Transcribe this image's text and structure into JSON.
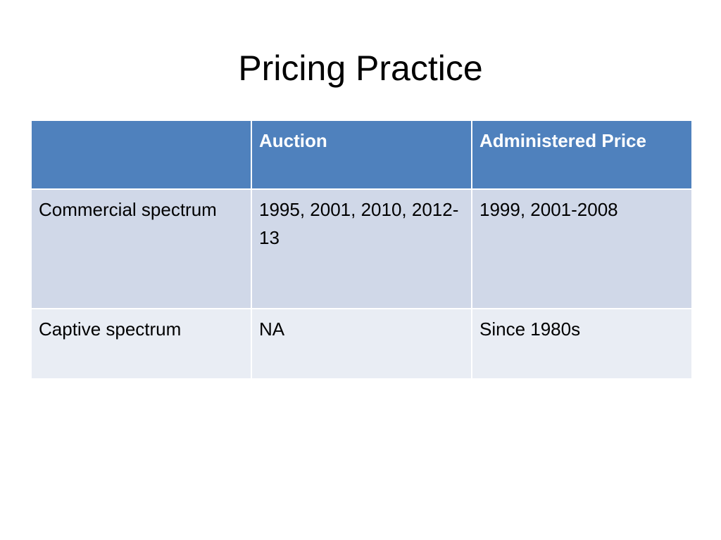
{
  "slide": {
    "title": "Pricing Practice"
  },
  "table": {
    "headers": [
      "",
      "Auction",
      "Administered Price"
    ],
    "rows": [
      [
        "Commercial spectrum",
        "1995, 2001, 2010, 2012-13",
        "1999, 2001-2008"
      ],
      [
        "Captive spectrum",
        "NA",
        "Since 1980s"
      ]
    ]
  },
  "colors": {
    "header_bg": "#4f81bd",
    "band_dark": "#d0d8e8",
    "band_light": "#e9edf4"
  }
}
